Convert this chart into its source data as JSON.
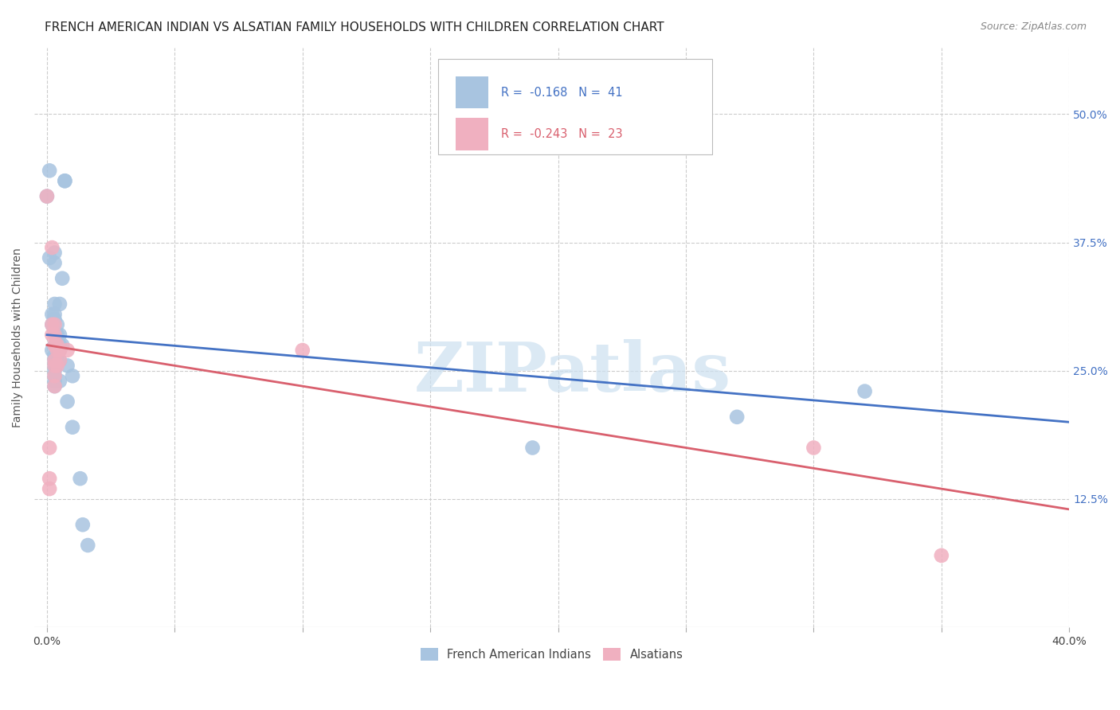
{
  "title": "FRENCH AMERICAN INDIAN VS ALSATIAN FAMILY HOUSEHOLDS WITH CHILDREN CORRELATION CHART",
  "source": "Source: ZipAtlas.com",
  "ylabel": "Family Households with Children",
  "x_ticks": [
    0.0,
    0.05,
    0.1,
    0.15,
    0.2,
    0.25,
    0.3,
    0.35,
    0.4
  ],
  "x_tick_labels": [
    "0.0%",
    "",
    "",
    "",
    "",
    "",
    "",
    "",
    "40.0%"
  ],
  "y_ticks": [
    0.125,
    0.25,
    0.375,
    0.5
  ],
  "y_tick_labels": [
    "12.5%",
    "25.0%",
    "37.5%",
    "50.0%"
  ],
  "xlim": [
    -0.005,
    0.4
  ],
  "ylim": [
    0.0,
    0.565
  ],
  "blue_color": "#a8c4e0",
  "pink_color": "#f0b0c0",
  "blue_line_color": "#4472c4",
  "pink_line_color": "#d9606e",
  "watermark": "ZIPatlas",
  "blue_scatter": [
    [
      0.001,
      0.445
    ],
    [
      0.007,
      0.435
    ],
    [
      0.003,
      0.365
    ],
    [
      0.007,
      0.435
    ],
    [
      0.003,
      0.355
    ],
    [
      0.0,
      0.42
    ],
    [
      0.003,
      0.315
    ],
    [
      0.005,
      0.315
    ],
    [
      0.001,
      0.36
    ],
    [
      0.002,
      0.305
    ],
    [
      0.004,
      0.295
    ],
    [
      0.003,
      0.305
    ],
    [
      0.004,
      0.285
    ],
    [
      0.002,
      0.295
    ],
    [
      0.003,
      0.3
    ],
    [
      0.005,
      0.285
    ],
    [
      0.005,
      0.275
    ],
    [
      0.003,
      0.275
    ],
    [
      0.004,
      0.275
    ],
    [
      0.004,
      0.27
    ],
    [
      0.005,
      0.27
    ],
    [
      0.003,
      0.265
    ],
    [
      0.004,
      0.265
    ],
    [
      0.003,
      0.26
    ],
    [
      0.005,
      0.26
    ],
    [
      0.003,
      0.255
    ],
    [
      0.003,
      0.25
    ],
    [
      0.003,
      0.245
    ],
    [
      0.003,
      0.24
    ],
    [
      0.003,
      0.235
    ],
    [
      0.002,
      0.27
    ],
    [
      0.005,
      0.24
    ],
    [
      0.006,
      0.34
    ],
    [
      0.006,
      0.275
    ],
    [
      0.008,
      0.255
    ],
    [
      0.008,
      0.22
    ],
    [
      0.01,
      0.245
    ],
    [
      0.01,
      0.195
    ],
    [
      0.013,
      0.145
    ],
    [
      0.014,
      0.1
    ],
    [
      0.016,
      0.08
    ],
    [
      0.19,
      0.175
    ],
    [
      0.27,
      0.205
    ],
    [
      0.32,
      0.23
    ]
  ],
  "pink_scatter": [
    [
      0.0,
      0.42
    ],
    [
      0.002,
      0.37
    ],
    [
      0.002,
      0.295
    ],
    [
      0.003,
      0.295
    ],
    [
      0.003,
      0.285
    ],
    [
      0.003,
      0.275
    ],
    [
      0.004,
      0.275
    ],
    [
      0.003,
      0.26
    ],
    [
      0.004,
      0.27
    ],
    [
      0.003,
      0.255
    ],
    [
      0.004,
      0.255
    ],
    [
      0.003,
      0.245
    ],
    [
      0.003,
      0.235
    ],
    [
      0.005,
      0.27
    ],
    [
      0.005,
      0.26
    ],
    [
      0.008,
      0.27
    ],
    [
      0.001,
      0.175
    ],
    [
      0.001,
      0.145
    ],
    [
      0.001,
      0.135
    ],
    [
      0.002,
      0.285
    ],
    [
      0.1,
      0.27
    ],
    [
      0.3,
      0.175
    ],
    [
      0.35,
      0.07
    ]
  ],
  "blue_trend_x": [
    0.0,
    0.4
  ],
  "blue_trend_y": [
    0.285,
    0.2
  ],
  "pink_trend_x": [
    0.0,
    0.4
  ],
  "pink_trend_y": [
    0.275,
    0.115
  ],
  "bottom_legend_blue": "French American Indians",
  "bottom_legend_pink": "Alsatians",
  "background_color": "#ffffff",
  "grid_color": "#cccccc",
  "title_fontsize": 11,
  "axis_label_fontsize": 10,
  "tick_fontsize": 10
}
